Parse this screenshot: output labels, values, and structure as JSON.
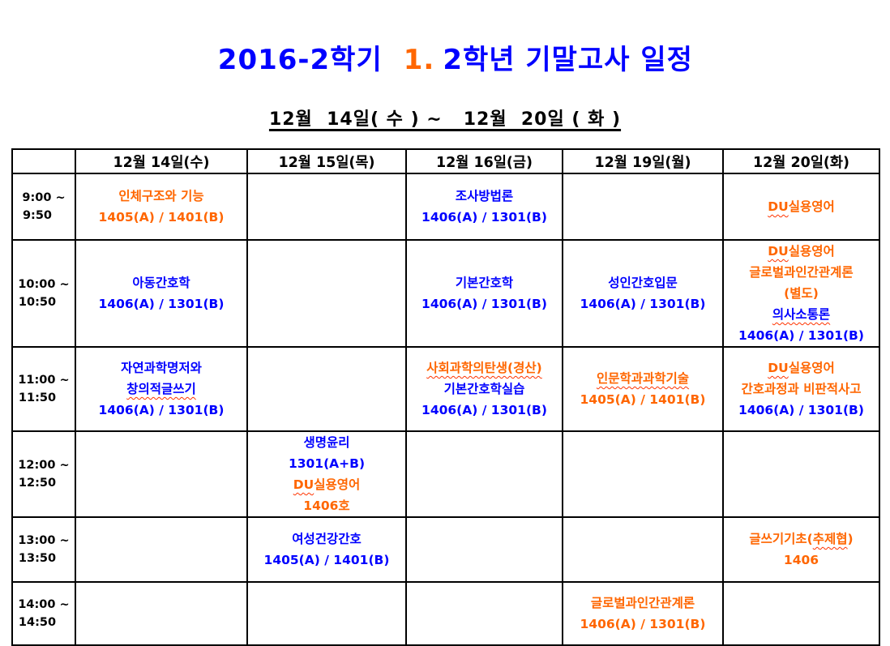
{
  "title": {
    "semester": "2016-2학기",
    "grade_marker": "1.",
    "rest": "2학년 기말고사 일정"
  },
  "subtitle": "12월  14일( 수 ) ~   12월  20일 ( 화 )",
  "colors": {
    "blue": "#0000ff",
    "orange": "#ff6600",
    "squiggle": "#ff3300",
    "border": "#000000"
  },
  "table": {
    "corner_label": "",
    "day_headers": [
      "12월 14일(수)",
      "12월 15일(목)",
      "12월 16일(금)",
      "12월 19일(월)",
      "12월 20일(화)"
    ],
    "rows": [
      {
        "time_start": "9:00 ~",
        "time_end": "9:50",
        "cells": [
          [
            [
              {
                "t": "인체구조와 기능",
                "c": "o"
              }
            ],
            [
              {
                "t": "1405(A) / 1401(B)",
                "c": "o"
              }
            ]
          ],
          [],
          [
            [
              {
                "t": "조사방법론",
                "c": "b"
              }
            ],
            [
              {
                "t": "1406(A) / 1301(B)",
                "c": "b"
              }
            ]
          ],
          [],
          [
            [
              {
                "t": "DU",
                "c": "o",
                "u": true
              },
              {
                "t": "실용영어",
                "c": "o"
              }
            ]
          ]
        ]
      },
      {
        "time_start": "10:00 ~",
        "time_end": "10:50",
        "cells": [
          [
            [
              {
                "t": "아동간호학",
                "c": "b"
              }
            ],
            [
              {
                "t": "1406(A) / 1301(B)",
                "c": "b"
              }
            ]
          ],
          [],
          [
            [
              {
                "t": "기본간호학",
                "c": "b"
              }
            ],
            [
              {
                "t": "1406(A) / 1301(B)",
                "c": "b"
              }
            ]
          ],
          [
            [
              {
                "t": "성인간호입문",
                "c": "b"
              }
            ],
            [
              {
                "t": "1406(A) / 1301(B)",
                "c": "b"
              }
            ]
          ],
          [
            [
              {
                "t": "DU",
                "c": "o",
                "u": true
              },
              {
                "t": "실용영어",
                "c": "o"
              }
            ],
            [
              {
                "t": "글로벌과인간관계론",
                "c": "o"
              }
            ],
            [
              {
                "t": "(별도)",
                "c": "o"
              }
            ],
            [
              {
                "t": "의사소통론",
                "c": "b",
                "u": true
              }
            ],
            [
              {
                "t": "1406(A) / 1301(B)",
                "c": "b"
              }
            ]
          ]
        ]
      },
      {
        "time_start": "11:00 ~",
        "time_end": "11:50",
        "cells": [
          [
            [
              {
                "t": "자연과학명저와",
                "c": "b"
              }
            ],
            [
              {
                "t": "창의적글쓰기",
                "c": "b",
                "u": true
              }
            ],
            [
              {
                "t": "1406(A) / 1301(B)",
                "c": "b"
              }
            ]
          ],
          [],
          [
            [
              {
                "t": "사회과학의탄생(경산)",
                "c": "o",
                "u": true
              }
            ],
            [
              {
                "t": "기본간호학실습",
                "c": "b"
              }
            ],
            [
              {
                "t": "1406(A) / 1301(B)",
                "c": "b"
              }
            ]
          ],
          [
            [
              {
                "t": "인문학과과학기술",
                "c": "o",
                "u": true
              }
            ],
            [
              {
                "t": "1405(A) / 1401(B)",
                "c": "o"
              }
            ]
          ],
          [
            [
              {
                "t": "DU",
                "c": "o",
                "u": true
              },
              {
                "t": "실용영어",
                "c": "o"
              }
            ],
            [
              {
                "t": "간호과정과 비판적사고",
                "c": "o"
              }
            ],
            [
              {
                "t": "1406(A) / 1301(B)",
                "c": "b"
              }
            ]
          ]
        ]
      },
      {
        "time_start": "12:00 ~",
        "time_end": "12:50",
        "cells": [
          [],
          [
            [
              {
                "t": "생명윤리",
                "c": "b"
              }
            ],
            [
              {
                "t": "1301(A+B)",
                "c": "b"
              }
            ],
            [
              {
                "t": "DU",
                "c": "o",
                "u": true
              },
              {
                "t": "실용영어",
                "c": "o"
              }
            ],
            [
              {
                "t": "1406호",
                "c": "o"
              }
            ]
          ],
          [],
          [],
          []
        ]
      },
      {
        "time_start": "13:00 ~",
        "time_end": "13:50",
        "cells": [
          [],
          [
            [
              {
                "t": "여성건강간호",
                "c": "b"
              }
            ],
            [
              {
                "t": "1405(A) / 1401(B)",
                "c": "b"
              }
            ]
          ],
          [],
          [],
          [
            [
              {
                "t": "글쓰기기초(",
                "c": "o"
              },
              {
                "t": "추제협",
                "c": "o",
                "u": true
              },
              {
                "t": ")",
                "c": "o"
              }
            ],
            [
              {
                "t": "1406",
                "c": "o"
              }
            ]
          ]
        ]
      },
      {
        "time_start": "14:00 ~",
        "time_end": "14:50",
        "cells": [
          [],
          [],
          [],
          [
            [
              {
                "t": "글로벌과인간관계론",
                "c": "o"
              }
            ],
            [
              {
                "t": "1406(A) / 1301(B)",
                "c": "o"
              }
            ]
          ],
          []
        ]
      }
    ]
  }
}
